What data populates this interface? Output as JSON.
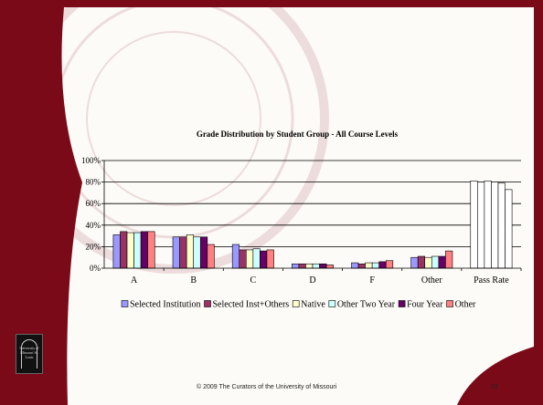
{
  "slide": {
    "footer_text": "© 2009 The Curators of the University of Missouri",
    "page_number": "23",
    "logo_text": "University of Missouri St. Louis",
    "seal_text": "UNIVERSITY OF MISSOURI · MDCCCXXXIX",
    "colors": {
      "maroon": "#7a0a18",
      "paper": "#fdfbf7"
    }
  },
  "chart_data": {
    "type": "bar",
    "title": "Grade Distribution by Student Group - All Course Levels",
    "xlabel": "",
    "ylabel": "",
    "ylim": [
      0,
      100
    ],
    "y_ticks": [
      "0%",
      "20%",
      "40%",
      "60%",
      "80%",
      "100%"
    ],
    "grid": true,
    "legend_position": "bottom",
    "categories": [
      "A",
      "B",
      "C",
      "D",
      "F",
      "Other",
      "Pass Rate"
    ],
    "series": [
      {
        "name": "Selected Institution",
        "color": "#9999ff",
        "values": [
          31,
          29,
          22,
          4,
          5,
          10,
          81
        ]
      },
      {
        "name": "Selected Inst+Others",
        "color": "#993366",
        "values": [
          34,
          29,
          17,
          4,
          4,
          11,
          80
        ]
      },
      {
        "name": "Native",
        "color": "#ffffcc",
        "values": [
          33,
          31,
          17,
          4,
          5,
          10,
          81
        ]
      },
      {
        "name": "Other Two Year",
        "color": "#ccffff",
        "values": [
          33,
          29,
          18,
          4,
          5,
          11,
          80
        ]
      },
      {
        "name": "Four Year",
        "color": "#660066",
        "values": [
          34,
          29,
          16,
          4,
          6,
          11,
          79
        ]
      },
      {
        "name": "Other",
        "color": "#ff8080",
        "values": [
          34,
          22,
          17,
          3,
          7,
          16,
          73
        ]
      }
    ],
    "pass_rate_fill": "#ffffff"
  }
}
